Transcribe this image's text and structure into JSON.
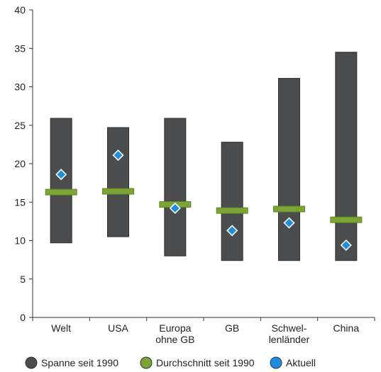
{
  "chart_data": {
    "type": "range",
    "categories": [
      [
        "Welt"
      ],
      [
        "USA"
      ],
      [
        "Europa",
        "ohne GB"
      ],
      [
        "GB"
      ],
      [
        "Schwel-",
        "lenländer"
      ],
      [
        "China"
      ]
    ],
    "ylim": [
      0,
      40
    ],
    "yticks": [
      0,
      5,
      10,
      15,
      20,
      25,
      30,
      35,
      40
    ],
    "grid": false,
    "legend_position": "bottom",
    "series": [
      {
        "name": "Spanne seit 1990",
        "marker": "bar",
        "color": "#4a4c4e",
        "low": [
          9.7,
          10.5,
          8.0,
          7.4,
          7.4,
          7.4
        ],
        "high": [
          25.9,
          24.7,
          25.9,
          22.8,
          31.1,
          34.5
        ]
      },
      {
        "name": "Durchschnitt seit 1990",
        "marker": "line",
        "color": "#7da534",
        "values": [
          16.3,
          16.4,
          14.7,
          13.9,
          14.1,
          12.7
        ]
      },
      {
        "name": "Aktuell",
        "marker": "diamond",
        "color": "#1e8fe0",
        "values": [
          18.6,
          21.1,
          14.2,
          11.3,
          12.3,
          9.4
        ]
      }
    ]
  }
}
